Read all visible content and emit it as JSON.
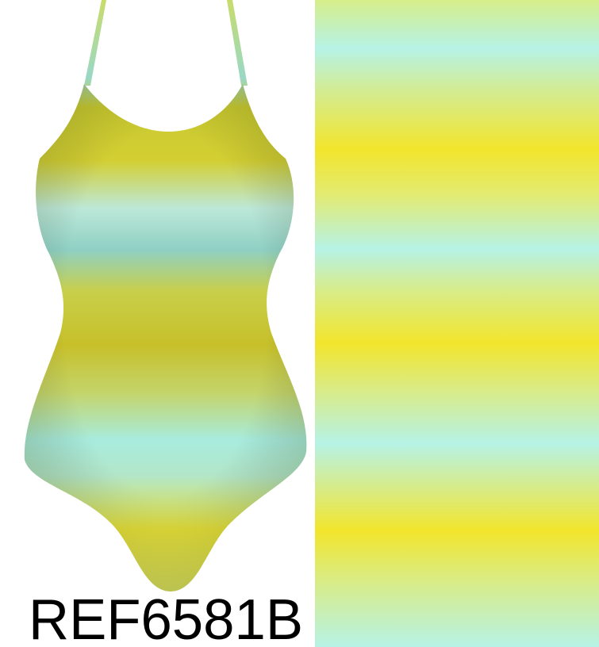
{
  "product": {
    "reference": "REF6581B"
  }
}
